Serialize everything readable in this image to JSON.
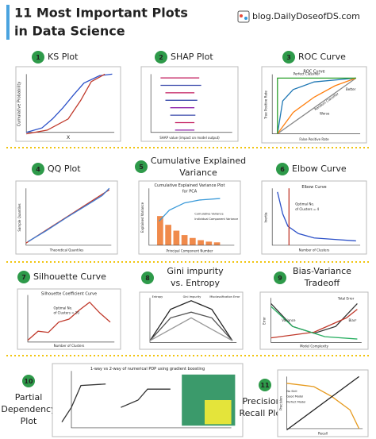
{
  "header": {
    "title_line1": "11 Most Important Plots",
    "title_line2": "in Data Science",
    "site": "blog.DailyDoseofDS.com"
  },
  "plots": [
    {
      "number": "1",
      "title": [
        "KS Plot"
      ],
      "labels": [
        "X",
        "Cumulative Probability"
      ]
    },
    {
      "number": "2",
      "title": [
        "SHAP Plot"
      ],
      "labels": [
        "SHAP value (impact on model output)"
      ]
    },
    {
      "number": "3",
      "title": [
        "ROC Curve"
      ],
      "labels": [
        "ROC Curve",
        "Perfect Classifier",
        "Better",
        "Worse",
        "Random Classifier",
        "False Positive Rate",
        "True Positive Rate"
      ]
    },
    {
      "number": "4",
      "title": [
        "QQ Plot"
      ],
      "labels": [
        "Theoretical Quantiles",
        "Sample Quantiles"
      ]
    },
    {
      "number": "5",
      "title": [
        "Cumulative Explained",
        "Variance"
      ],
      "labels": [
        "Cumulative Explained Variance Plot",
        "for PCA",
        "Cumulative Variance",
        "Individual Component Variance",
        "Principal Component Number",
        "Explained Variance"
      ]
    },
    {
      "number": "6",
      "title": [
        "Elbow Curve"
      ],
      "labels": [
        "Elbow Curve",
        "Optimal No.",
        "of Clusters = 4",
        "Number of Clusters",
        "Inertia"
      ]
    },
    {
      "number": "7",
      "title": [
        "Silhouette Curve"
      ],
      "labels": [
        "Silhouette Coefficient Curve",
        "Optimal No.",
        "of Clusters = 20",
        "Number of Clusters"
      ]
    },
    {
      "number": "8",
      "title": [
        "Gini impurity",
        "vs. Entropy"
      ],
      "labels": [
        "Entropy",
        "Gini Impurity",
        "Misclassification Error"
      ]
    },
    {
      "number": "9",
      "title": [
        "Bias-Variance",
        "Tradeoff"
      ],
      "labels": [
        "Total Error",
        "Bias²",
        "Variance",
        "Model Complexity",
        "Error"
      ]
    },
    {
      "number": "10",
      "title": [
        "Partial",
        "Dependency",
        "Plot"
      ],
      "labels": [
        "1-way vs 2-way of numerical PDP using gradient boosting"
      ]
    },
    {
      "number": "11",
      "title": [
        "Precision",
        "Recall Plot"
      ],
      "labels": [
        "No Skill",
        "Good Model",
        "Perfect Model",
        "Recall",
        "Precision"
      ]
    }
  ]
}
